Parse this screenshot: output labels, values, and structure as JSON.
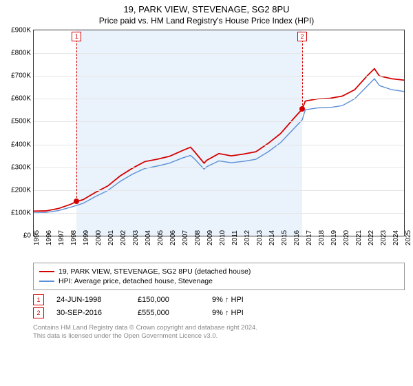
{
  "title": "19, PARK VIEW, STEVENAGE, SG2 8PU",
  "subtitle": "Price paid vs. HM Land Registry's House Price Index (HPI)",
  "chart": {
    "type": "line",
    "background_color": "#ffffff",
    "shade_color": "#eaf2fb",
    "grid_color": "#e5e5e5",
    "border_color": "#333333",
    "ylim": [
      0,
      900
    ],
    "ytick_step": 100,
    "ytick_prefix": "£",
    "ytick_suffix": "K",
    "xlim": [
      1995,
      2025
    ],
    "xticks": [
      1995,
      1996,
      1997,
      1998,
      1999,
      2000,
      2001,
      2002,
      2003,
      2004,
      2005,
      2006,
      2007,
      2008,
      2009,
      2010,
      2011,
      2012,
      2013,
      2014,
      2015,
      2016,
      2017,
      2018,
      2019,
      2020,
      2021,
      2022,
      2023,
      2024,
      2025
    ],
    "shade_start": 1998.48,
    "shade_end": 2016.75,
    "series": [
      {
        "name": "price_paid",
        "label": "19, PARK VIEW, STEVENAGE, SG2 8PU (detached house)",
        "color": "#d40000",
        "width": 1.8,
        "points": [
          [
            1995,
            108
          ],
          [
            1996,
            109
          ],
          [
            1997,
            119
          ],
          [
            1998,
            138
          ],
          [
            1998.48,
            150
          ],
          [
            1999,
            158
          ],
          [
            2000,
            190
          ],
          [
            2001,
            218
          ],
          [
            2002,
            262
          ],
          [
            2003,
            296
          ],
          [
            2004,
            325
          ],
          [
            2005,
            335
          ],
          [
            2006,
            348
          ],
          [
            2007,
            372
          ],
          [
            2007.7,
            388
          ],
          [
            2008,
            370
          ],
          [
            2008.8,
            318
          ],
          [
            2009,
            330
          ],
          [
            2010,
            360
          ],
          [
            2011,
            350
          ],
          [
            2012,
            358
          ],
          [
            2013,
            368
          ],
          [
            2014,
            405
          ],
          [
            2015,
            448
          ],
          [
            2016,
            510
          ],
          [
            2016.75,
            555
          ],
          [
            2017,
            590
          ],
          [
            2018,
            600
          ],
          [
            2019,
            602
          ],
          [
            2020,
            612
          ],
          [
            2021,
            640
          ],
          [
            2022,
            700
          ],
          [
            2022.6,
            732
          ],
          [
            2023,
            700
          ],
          [
            2024,
            688
          ],
          [
            2025,
            682
          ]
        ]
      },
      {
        "name": "hpi",
        "label": "HPI: Average price, detached house, Stevenage",
        "color": "#5b8fd6",
        "width": 1.4,
        "points": [
          [
            1995,
            100
          ],
          [
            1996,
            102
          ],
          [
            1997,
            110
          ],
          [
            1998,
            125
          ],
          [
            1999,
            142
          ],
          [
            2000,
            172
          ],
          [
            2001,
            198
          ],
          [
            2002,
            238
          ],
          [
            2003,
            270
          ],
          [
            2004,
            295
          ],
          [
            2005,
            305
          ],
          [
            2006,
            318
          ],
          [
            2007,
            340
          ],
          [
            2007.7,
            352
          ],
          [
            2008,
            338
          ],
          [
            2008.8,
            292
          ],
          [
            2009,
            302
          ],
          [
            2010,
            328
          ],
          [
            2011,
            320
          ],
          [
            2012,
            326
          ],
          [
            2013,
            335
          ],
          [
            2014,
            368
          ],
          [
            2015,
            408
          ],
          [
            2016,
            465
          ],
          [
            2016.75,
            508
          ],
          [
            2017,
            552
          ],
          [
            2018,
            560
          ],
          [
            2019,
            562
          ],
          [
            2020,
            570
          ],
          [
            2021,
            600
          ],
          [
            2022,
            655
          ],
          [
            2022.6,
            688
          ],
          [
            2023,
            658
          ],
          [
            2024,
            640
          ],
          [
            2025,
            632
          ]
        ]
      }
    ],
    "markers": [
      {
        "n": "1",
        "x": 1998.48,
        "y": 150,
        "color": "#d40000"
      },
      {
        "n": "2",
        "x": 2016.75,
        "y": 555,
        "color": "#d40000"
      }
    ]
  },
  "sales": [
    {
      "n": "1",
      "date": "24-JUN-1998",
      "price": "£150,000",
      "diff": "9% ↑ HPI",
      "color": "#d40000"
    },
    {
      "n": "2",
      "date": "30-SEP-2016",
      "price": "£555,000",
      "diff": "9% ↑ HPI",
      "color": "#d40000"
    }
  ],
  "footer": {
    "line1": "Contains HM Land Registry data © Crown copyright and database right 2024.",
    "line2": "This data is licensed under the Open Government Licence v3.0."
  }
}
